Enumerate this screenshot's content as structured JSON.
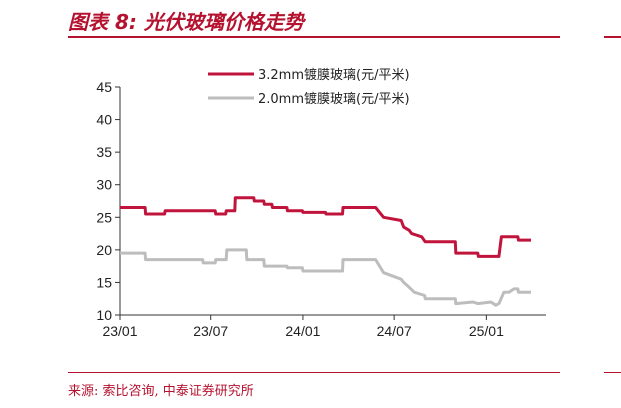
{
  "header": {
    "title": "图表 8:  光伏玻璃价格走势"
  },
  "footer": {
    "source": "来源: 索比咨询, 中泰证券研究所"
  },
  "chart_data": {
    "type": "line",
    "title": "",
    "xlabel": "",
    "ylabel": "",
    "ylim": [
      10,
      45
    ],
    "yticks": [
      10,
      15,
      20,
      25,
      30,
      35,
      40,
      45
    ],
    "xlim": [
      "2023-01-01",
      "2025-04-30"
    ],
    "xticks": [
      {
        "date": "2023-01-01",
        "label": "23/01"
      },
      {
        "date": "2023-07-01",
        "label": "23/07"
      },
      {
        "date": "2024-01-01",
        "label": "24/01"
      },
      {
        "date": "2024-07-01",
        "label": "24/07"
      },
      {
        "date": "2025-01-01",
        "label": "25/01"
      }
    ],
    "grid": false,
    "legend_position": "top",
    "series": [
      {
        "name": "3.2mm镀膜玻璃(元/平米)",
        "color": "#c0143c",
        "x": [
          "2023-01-01",
          "2023-02-20",
          "2023-02-21",
          "2023-03-31",
          "2023-04-01",
          "2023-07-10",
          "2023-07-11",
          "2023-07-31",
          "2023-08-01",
          "2023-08-18",
          "2023-08-19",
          "2023-09-25",
          "2023-09-26",
          "2023-10-15",
          "2023-10-16",
          "2023-10-31",
          "2023-11-01",
          "2023-11-30",
          "2023-12-01",
          "2023-12-31",
          "2024-01-01",
          "2024-02-15",
          "2024-02-16",
          "2024-03-20",
          "2024-03-21",
          "2024-04-15",
          "2024-04-16",
          "2024-05-25",
          "2024-06-10",
          "2024-07-15",
          "2024-07-20",
          "2024-07-31",
          "2024-08-05",
          "2024-08-25",
          "2024-09-01",
          "2024-10-31",
          "2024-11-01",
          "2024-12-15",
          "2024-12-16",
          "2025-01-26",
          "2025-01-31",
          "2025-03-05",
          "2025-03-06",
          "2025-03-31"
        ],
        "y": [
          26.5,
          26.5,
          25.5,
          25.5,
          26.0,
          26.0,
          25.5,
          25.5,
          26.0,
          26.0,
          28.0,
          28.0,
          27.5,
          27.5,
          27.0,
          27.0,
          26.5,
          26.5,
          26.0,
          26.0,
          25.75,
          25.75,
          25.5,
          25.5,
          26.5,
          26.5,
          26.5,
          26.5,
          25.0,
          24.5,
          23.5,
          23.0,
          22.5,
          22.0,
          21.25,
          21.25,
          19.5,
          19.5,
          19.0,
          19.0,
          22.0,
          22.0,
          21.5,
          21.5
        ]
      },
      {
        "name": "2.0mm镀膜玻璃(元/平米)",
        "color": "#bdbdbd",
        "x": [
          "2023-01-01",
          "2023-02-20",
          "2023-02-21",
          "2023-06-15",
          "2023-06-16",
          "2023-07-10",
          "2023-07-11",
          "2023-08-01",
          "2023-08-02",
          "2023-09-10",
          "2023-09-11",
          "2023-10-15",
          "2023-10-16",
          "2023-11-30",
          "2023-12-01",
          "2023-12-31",
          "2024-01-01",
          "2024-02-15",
          "2024-02-16",
          "2024-03-20",
          "2024-03-21",
          "2024-05-25",
          "2024-06-10",
          "2024-07-15",
          "2024-07-20",
          "2024-07-31",
          "2024-08-10",
          "2024-08-31",
          "2024-09-01",
          "2024-10-31",
          "2024-11-01",
          "2024-12-05",
          "2024-12-15",
          "2025-01-10",
          "2025-01-20",
          "2025-01-26",
          "2025-02-05",
          "2025-02-15",
          "2025-02-25",
          "2025-03-05",
          "2025-03-06",
          "2025-03-31"
        ],
        "y": [
          19.5,
          19.5,
          18.5,
          18.5,
          18.0,
          18.0,
          18.5,
          18.5,
          20.0,
          20.0,
          18.5,
          18.5,
          17.5,
          17.5,
          17.25,
          17.25,
          16.75,
          16.75,
          16.75,
          16.75,
          18.5,
          18.5,
          16.5,
          15.5,
          15.0,
          14.25,
          13.5,
          13.0,
          12.5,
          12.5,
          11.75,
          12.0,
          11.75,
          12.0,
          11.5,
          11.75,
          13.5,
          13.5,
          14.0,
          14.0,
          13.5,
          13.5
        ]
      }
    ]
  }
}
